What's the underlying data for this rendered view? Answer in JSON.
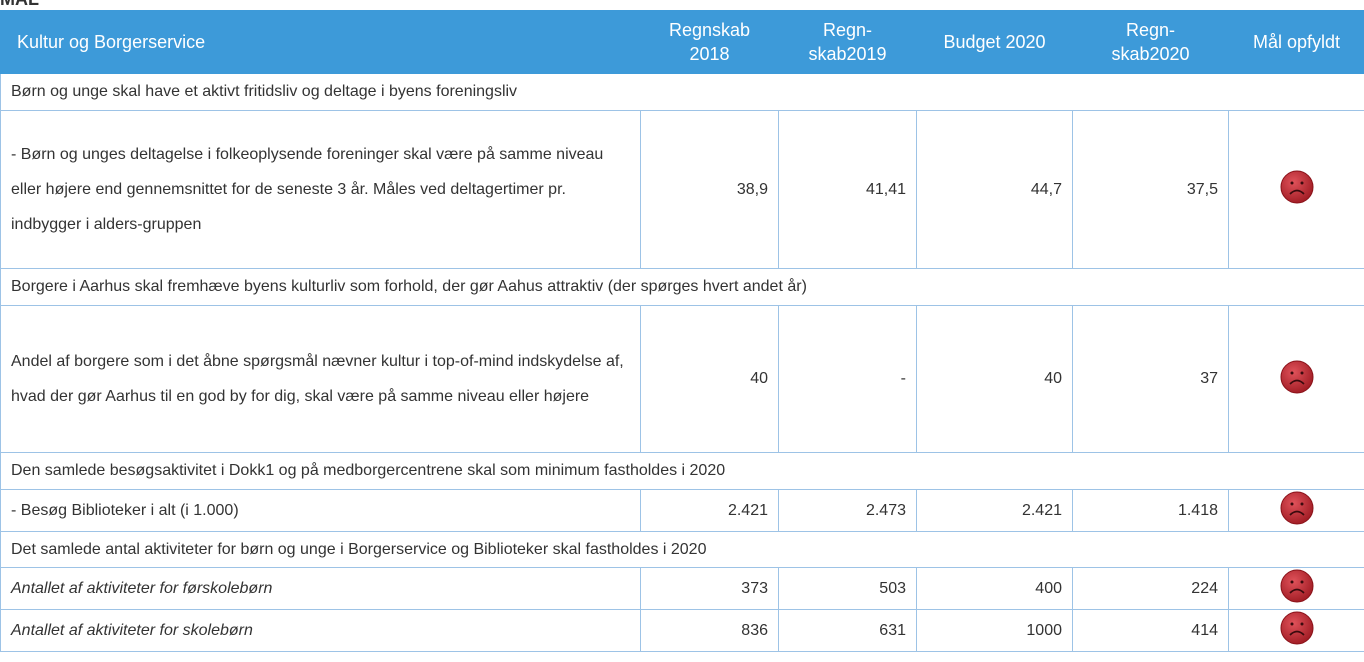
{
  "header": {
    "title": "MÅL"
  },
  "table": {
    "columns": [
      "Kultur og Borgerservice",
      "Regnskab 2018",
      "Regn-skab2019",
      "Budget 2020",
      "Regn-skab2020",
      "Mål opfyldt"
    ],
    "rows": [
      {
        "type": "section",
        "text": "Børn og unge skal have et aktivt fritidsliv og deltage i byens foreningsliv"
      },
      {
        "type": "item",
        "label": "- Børn og unges deltagelse i folkeoplysende foreninger skal være på samme niveau eller højere end gennemsnittet for de seneste 3 år. Måles ved deltagertimer pr. indbygger i alders-gruppen",
        "values": [
          "38,9",
          "41,41",
          "44,7",
          "37,5"
        ]
      },
      {
        "type": "section",
        "text": "Borgere i Aarhus skal fremhæve byens kulturliv som forhold, der gør Aahus attraktiv (der spørges hvert andet år)"
      },
      {
        "type": "item",
        "label": "Andel af borgere som i det åbne spørgsmål nævner kultur i top-of-mind indskydelse af, hvad der gør Aarhus til en god by for dig, skal være på samme niveau eller højere",
        "values": [
          "40",
          "-",
          "40",
          "37"
        ]
      },
      {
        "type": "section",
        "text": "Den samlede besøgsaktivitet i Dokk1 og på medborgercentrene skal som minimum fastholdes i 2020"
      },
      {
        "type": "item",
        "label": "- Besøg Biblioteker i alt (i 1.000)",
        "values": [
          "2.421",
          "2.473",
          "2.421",
          "1.418"
        ]
      },
      {
        "type": "section",
        "text": "Det samlede antal aktiviteter for børn og unge i Borgerservice og Biblioteker skal fastholdes i 2020"
      },
      {
        "type": "item",
        "italic": true,
        "label": "Antallet af aktiviteter for førskolebørn",
        "values": [
          "373",
          "503",
          "400",
          "224"
        ]
      },
      {
        "type": "item",
        "italic": true,
        "label": "Antallet af aktiviteter for skolebørn",
        "values": [
          "836",
          "631",
          "1000",
          "414"
        ]
      }
    ]
  }
}
